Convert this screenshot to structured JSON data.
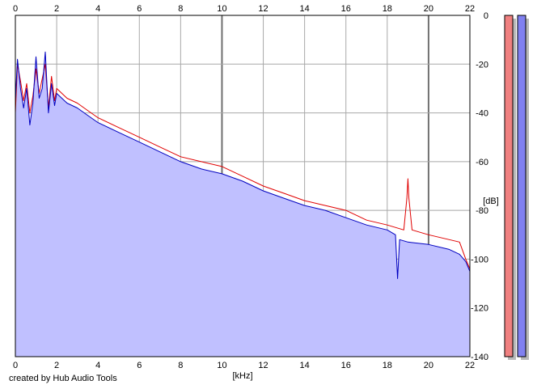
{
  "chart_data": {
    "type": "area",
    "title": "",
    "xlabel": "[kHz]",
    "ylabel": "[dB]",
    "xlim": [
      0,
      22
    ],
    "ylim": [
      -140,
      0
    ],
    "x_ticks": [
      0,
      2,
      4,
      6,
      8,
      10,
      12,
      14,
      16,
      18,
      20,
      22
    ],
    "x_tick_labels": [
      "0",
      "2",
      "4",
      "6",
      "8",
      "10",
      "12",
      "14",
      "16",
      "18",
      "20",
      "22"
    ],
    "y_ticks": [
      0,
      -20,
      -40,
      -60,
      -80,
      -100,
      -120,
      -140
    ],
    "y_tick_labels": [
      "0",
      "-20",
      "-40",
      "-60",
      "-80",
      "-100",
      "-120",
      "-140"
    ],
    "grid": true,
    "grid_major_x": [
      10,
      20
    ],
    "colors": {
      "fill": "#c0c0ff",
      "grid": "#a8a8a8",
      "grid_major": "#707070",
      "level_left_bar": "#f08080",
      "level_right_bar": "#8080f0"
    },
    "series": [
      {
        "color": "#e00000",
        "x": [
          0,
          0.1,
          0.25,
          0.4,
          0.55,
          0.7,
          0.85,
          1.0,
          1.15,
          1.3,
          1.45,
          1.6,
          1.75,
          1.9,
          2.0,
          2.5,
          3.0,
          3.5,
          4.0,
          5.0,
          6.0,
          7.0,
          8.0,
          9.0,
          10.0,
          11.0,
          12.0,
          13.0,
          14.0,
          15.0,
          16.0,
          17.0,
          18.0,
          18.8,
          18.95,
          19.0,
          19.05,
          19.2,
          20.0,
          21.0,
          21.5,
          21.8,
          22.0
        ],
        "values": [
          -40,
          -20,
          -27,
          -35,
          -28,
          -40,
          -33,
          -22,
          -32,
          -26,
          -20,
          -38,
          -25,
          -35,
          -30,
          -34,
          -36,
          -39,
          -42,
          -46,
          -50,
          -54,
          -58,
          -60,
          -62,
          -66,
          -70,
          -73,
          -76,
          -78,
          -80,
          -84,
          -86,
          -88,
          -75,
          -67,
          -75,
          -88,
          -90,
          -92,
          -93,
          -100,
          -104
        ]
      },
      {
        "color": "#0000c0",
        "x": [
          0,
          0.1,
          0.25,
          0.4,
          0.55,
          0.7,
          0.85,
          1.0,
          1.15,
          1.3,
          1.45,
          1.6,
          1.75,
          1.9,
          2.0,
          2.5,
          3.0,
          3.5,
          4.0,
          5.0,
          6.0,
          7.0,
          8.0,
          9.0,
          10.0,
          11.0,
          12.0,
          13.0,
          14.0,
          15.0,
          16.0,
          17.0,
          18.0,
          18.4,
          18.5,
          18.6,
          19.0,
          20.0,
          21.0,
          21.5,
          21.8,
          22.0
        ],
        "values": [
          -35,
          -18,
          -30,
          -38,
          -30,
          -45,
          -36,
          -17,
          -34,
          -30,
          -15,
          -40,
          -28,
          -37,
          -32,
          -36,
          -38,
          -41,
          -44,
          -48,
          -52,
          -56,
          -60,
          -63,
          -65,
          -68,
          -72,
          -75,
          -78,
          -80,
          -83,
          -86,
          -88,
          -90,
          -108,
          -92,
          -93,
          -94,
          -96,
          -98,
          -101,
          -105
        ]
      }
    ]
  },
  "level_meter": {
    "left_level": 0,
    "right_level": 0
  },
  "footer": {
    "credit": "created by Hub Audio Tools"
  }
}
